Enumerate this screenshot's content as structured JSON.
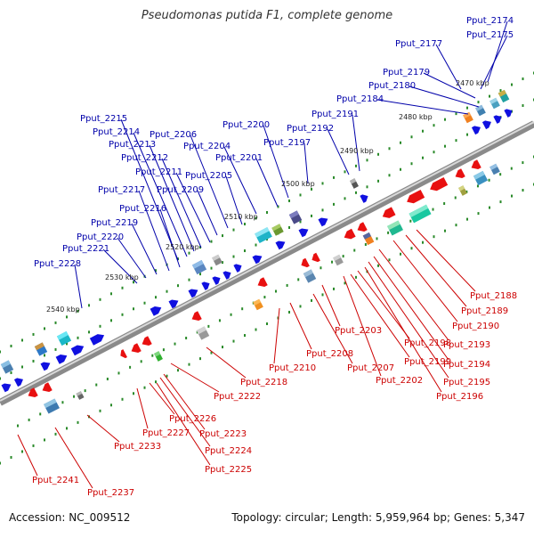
{
  "title": "Pseudomonas putida F1, complete genome",
  "accession_text": "Accession: NC_009512",
  "topology_text": "Topology: circular; Length: 5,959,964 bp; Genes: 5,347",
  "colors": {
    "backbone": "#8a8a8a",
    "backbone_light": "#d8d8d8",
    "forward_gene": "#1010e0",
    "reverse_gene": "#e81010",
    "forward_label": "#0000aa",
    "reverse_label": "#cc0000",
    "dot": "#2a8a2a",
    "tick_label": "#222222"
  },
  "scale_labels": [
    {
      "text": "2470 kbp"
    },
    {
      "text": "2480 kbp"
    },
    {
      "text": "2490 kbp"
    },
    {
      "text": "2500 kbp"
    },
    {
      "text": "2510 kbp"
    },
    {
      "text": "2520 kbp"
    },
    {
      "text": "2530 kbp"
    },
    {
      "text": "2540 kbp"
    }
  ],
  "forward_labels": [
    "Pput_2174",
    "Pput_2175",
    "Pput_2177",
    "Pput_2179",
    "Pput_2180",
    "Pput_2184",
    "Pput_2191",
    "Pput_2192",
    "Pput_2197",
    "Pput_2200",
    "Pput_2201",
    "Pput_2204",
    "Pput_2205",
    "Pput_2206",
    "Pput_2209",
    "Pput_2211",
    "Pput_2212",
    "Pput_2213",
    "Pput_2214",
    "Pput_2215",
    "Pput_2216",
    "Pput_2217",
    "Pput_2219",
    "Pput_2220",
    "Pput_2221",
    "Pput_2228"
  ],
  "reverse_labels": [
    "Pput_2188",
    "Pput_2189",
    "Pput_2190",
    "Pput_2193",
    "Pput_2194",
    "Pput_2195",
    "Pput_2196",
    "Pput_2198",
    "Pput_2199",
    "Pput_2202",
    "Pput_2203",
    "Pput_2207",
    "Pput_2208",
    "Pput_2210",
    "Pput_2218",
    "Pput_2222",
    "Pput_2223",
    "Pput_2224",
    "Pput_2225",
    "Pput_2226",
    "Pput_2227",
    "Pput_2233",
    "Pput_2237",
    "Pput_2241"
  ]
}
